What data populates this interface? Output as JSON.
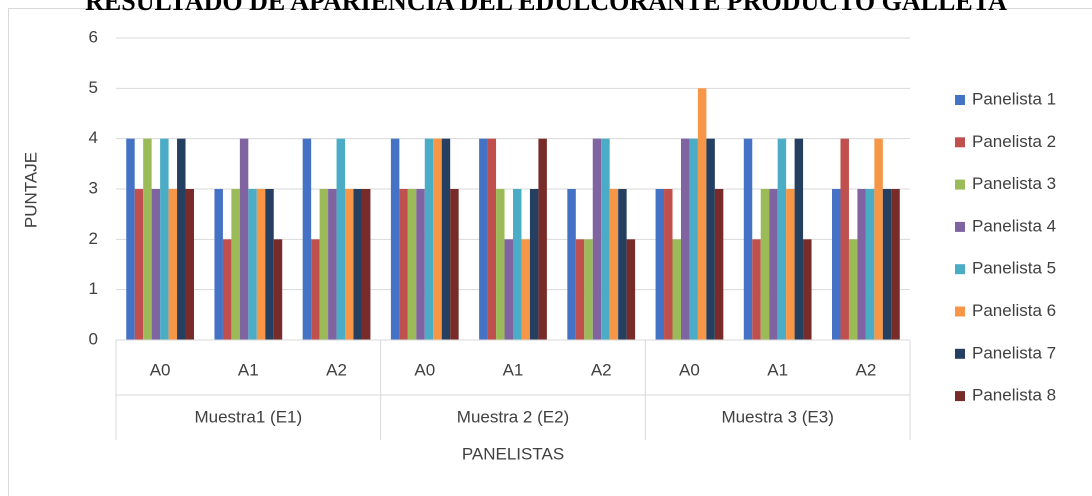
{
  "chart_data": {
    "type": "bar",
    "title": "RESULTADO DE APARIENCIA DEL EDULCORANTE PRODUCTO GALLETA",
    "x_label": "PANELISTAS",
    "y_label": "PUNTAJE",
    "categories": [
      "A0",
      "A1",
      "A2",
      "A0",
      "A1",
      "A2",
      "A0",
      "A1",
      "A2"
    ],
    "groups": [
      "Muestra1 (E1)",
      "Muestra 2 (E2)",
      "Muestra 3 (E3)"
    ],
    "series": [
      {
        "name": "Panelista 1",
        "color": "#4472c4",
        "values": [
          4,
          3,
          4,
          4,
          4,
          3,
          3,
          4,
          3
        ]
      },
      {
        "name": "Panelista 2",
        "color": "#c0504d",
        "values": [
          3,
          2,
          2,
          3,
          4,
          2,
          3,
          2,
          4
        ]
      },
      {
        "name": "Panelista 3",
        "color": "#9bbb59",
        "values": [
          4,
          3,
          3,
          3,
          3,
          2,
          2,
          3,
          2
        ]
      },
      {
        "name": "Panelista 4",
        "color": "#8064a2",
        "values": [
          3,
          4,
          3,
          3,
          2,
          4,
          4,
          3,
          3
        ]
      },
      {
        "name": "Panelista 5",
        "color": "#4bacc6",
        "values": [
          4,
          3,
          4,
          4,
          3,
          4,
          4,
          4,
          3
        ]
      },
      {
        "name": "Panelista 6",
        "color": "#f79646",
        "values": [
          3,
          3,
          3,
          4,
          2,
          3,
          5,
          3,
          4
        ]
      },
      {
        "name": "Panelista 7",
        "color": "#243f60",
        "values": [
          4,
          3,
          3,
          4,
          3,
          3,
          4,
          4,
          3
        ]
      },
      {
        "name": "Panelista 8",
        "color": "#772c2a",
        "values": [
          3,
          2,
          3,
          3,
          4,
          2,
          3,
          2,
          3
        ]
      }
    ],
    "ylim": [
      0,
      6
    ],
    "yticks": [
      0,
      1,
      2,
      3,
      4,
      5,
      6
    ],
    "grid": true,
    "legend": "right"
  }
}
